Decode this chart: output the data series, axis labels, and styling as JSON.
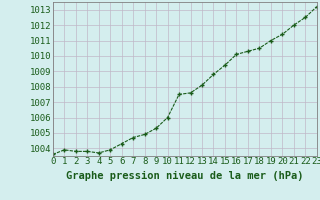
{
  "x": [
    0,
    1,
    2,
    3,
    4,
    5,
    6,
    7,
    8,
    9,
    10,
    11,
    12,
    13,
    14,
    15,
    16,
    17,
    18,
    19,
    20,
    21,
    22,
    23
  ],
  "y": [
    1003.6,
    1003.9,
    1003.8,
    1003.8,
    1003.7,
    1003.9,
    1004.3,
    1004.7,
    1004.9,
    1005.3,
    1006.0,
    1007.5,
    1007.6,
    1008.1,
    1008.8,
    1009.4,
    1010.1,
    1010.3,
    1010.5,
    1011.0,
    1011.4,
    1012.0,
    1012.5,
    1013.2
  ],
  "line_color": "#1a5c1a",
  "marker_color": "#1a5c1a",
  "background_color": "#d4eeee",
  "grid_color": "#c0b8c8",
  "title": "Graphe pression niveau de la mer (hPa)",
  "xlim": [
    0,
    23
  ],
  "ylim": [
    1003.5,
    1013.5
  ],
  "yticks": [
    1004,
    1005,
    1006,
    1007,
    1008,
    1009,
    1010,
    1011,
    1012,
    1013
  ],
  "xticks": [
    0,
    1,
    2,
    3,
    4,
    5,
    6,
    7,
    8,
    9,
    10,
    11,
    12,
    13,
    14,
    15,
    16,
    17,
    18,
    19,
    20,
    21,
    22,
    23
  ],
  "title_fontsize": 7.5,
  "tick_fontsize": 6.5,
  "title_color": "#1a5c1a",
  "tick_color": "#1a5c1a",
  "spine_color": "#808080"
}
